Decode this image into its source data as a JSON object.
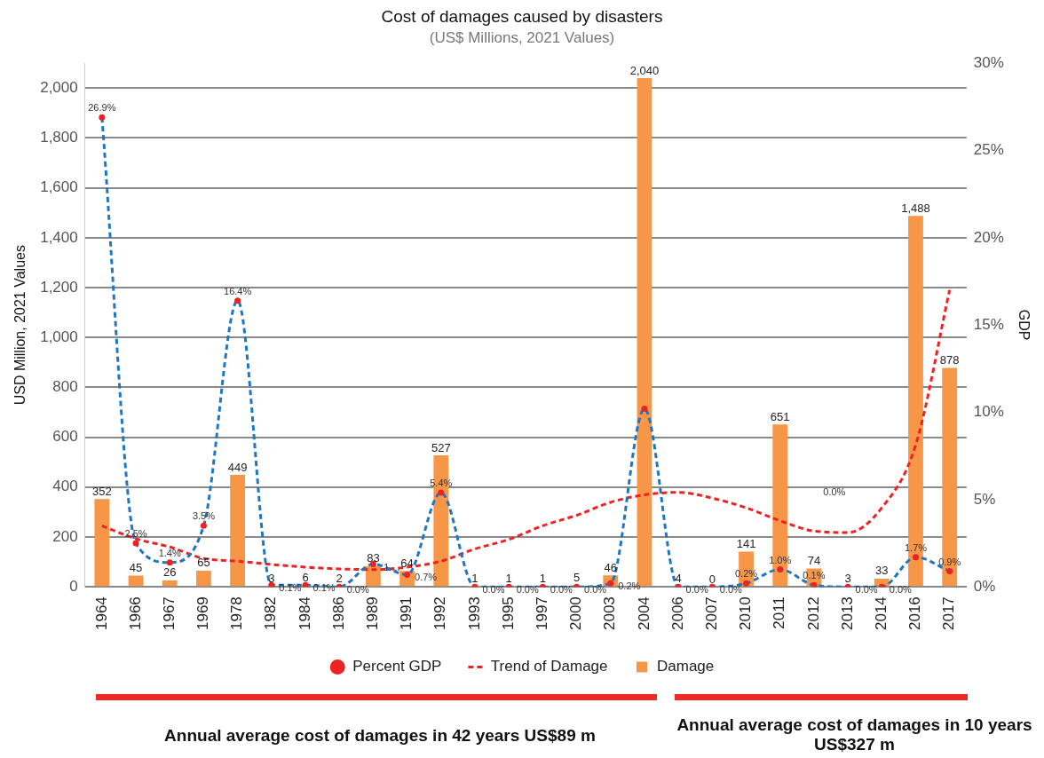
{
  "chart_data": {
    "type": "bar",
    "title": "Cost of damages caused by disasters",
    "subtitle": "(US$ Millions, 2021 Values)",
    "ylabel": "USD Million, 2021 Values",
    "y2label": "GDP",
    "categories": [
      "1964",
      "1966",
      "1967",
      "1969",
      "1978",
      "1982",
      "1984",
      "1986",
      "1989",
      "1991",
      "1992",
      "1993",
      "1995",
      "1997",
      "2000",
      "2003",
      "2004",
      "2006",
      "2007",
      "2010",
      "2011",
      "2012",
      "2013",
      "2014",
      "2016",
      "2017"
    ],
    "series": [
      {
        "name": "Damage",
        "color": "#f79646",
        "values": [
          352,
          45,
          26,
          65,
          449,
          3,
          6,
          2,
          83,
          64,
          527,
          1,
          1,
          1,
          5,
          46,
          2040,
          4,
          0,
          141,
          651,
          74,
          3,
          33,
          1488,
          878
        ],
        "value_labels": [
          "352",
          "45",
          "26",
          "65",
          "449",
          "3",
          "6",
          "2",
          "83",
          "64",
          "527",
          "1",
          "1",
          "1",
          "5",
          "46",
          "2,040",
          "4",
          "0",
          "141",
          "651",
          "74",
          "3",
          "33",
          "1,488",
          "878"
        ]
      },
      {
        "name": "Percent GDP",
        "type": "line",
        "axis": "y2",
        "color": "#1f77c4",
        "colors": [
          "#ee2222",
          "#ee2222",
          "#ee2222",
          "#ee2222",
          "#ee2222",
          "#ee2222",
          "#ee2222",
          "#ee2222",
          "#ee2222",
          "#ee2222",
          "#ee2222",
          "#ee2222",
          "#ee2222",
          "#ee2222",
          "#ee2222",
          "#ee2222",
          "#ee2222",
          "#ee2222",
          "#ee2222",
          "#ee2222",
          "#ee2222",
          "#ee2222",
          "#ee2222",
          "#ee2222",
          "#ee2222",
          "#ee2222"
        ],
        "marker": "circle",
        "line_style": "dashed",
        "values": [
          26.9,
          2.5,
          1.4,
          3.5,
          16.4,
          0.1,
          0.1,
          0.0,
          1.3,
          0.7,
          5.4,
          0.0,
          0.0,
          0.0,
          0.0,
          0.2,
          10.2,
          0.0,
          0.0,
          0.2,
          1.0,
          0.1,
          0.0,
          0.0,
          1.7,
          0.9
        ],
        "value_labels": [
          "26.9%",
          "2.5%",
          "1.4%",
          "3.5%",
          "16.4%",
          "0.1%",
          "0.1%",
          "0.0%",
          "1....",
          "0.7%",
          "5.4%",
          "0.0%",
          "0.0%",
          "0.0%",
          "0.0%",
          "0.2%",
          null,
          "0.0%",
          "0.0%",
          "0.2%",
          "1.0%",
          "0.1%",
          "0.0%",
          "0.0%",
          "1.7%",
          "0.9%"
        ]
      },
      {
        "name": "Trend of Damage",
        "type": "line",
        "color": "#ee2222",
        "marker": "none",
        "line_style": "dashed",
        "values": [
          245,
          193,
          160,
          114,
          103,
          90,
          79,
          72,
          69,
          79,
          103,
          152,
          190,
          245,
          287,
          339,
          369,
          379,
          356,
          317,
          265,
          224,
          218,
          317,
          569,
          1190
        ]
      }
    ],
    "ylim": [
      0,
      2100
    ],
    "yticks": [
      {
        "value": 0,
        "label": "0"
      },
      {
        "value": 200,
        "label": "200"
      },
      {
        "value": 400,
        "label": "400"
      },
      {
        "value": 600,
        "label": "600"
      },
      {
        "value": 800,
        "label": "800"
      },
      {
        "value": 1000,
        "label": "1,000"
      },
      {
        "value": 1200,
        "label": "1,200"
      },
      {
        "value": 1400,
        "label": "1,400"
      },
      {
        "value": 1600,
        "label": "1,600"
      },
      {
        "value": 1800,
        "label": "1,800"
      },
      {
        "value": 2000,
        "label": "2,000"
      }
    ],
    "y2lim": [
      0,
      30
    ],
    "y2ticks": [
      {
        "value": 0,
        "label": "0%"
      },
      {
        "value": 5,
        "label": "5%"
      },
      {
        "value": 10,
        "label": "10%"
      },
      {
        "value": 15,
        "label": "15%"
      },
      {
        "value": 20,
        "label": "20%"
      },
      {
        "value": 25,
        "label": "25%"
      },
      {
        "value": 30,
        "label": "30%"
      }
    ],
    "grid": "y",
    "legend": "bottom",
    "annotations": [
      "0.0%",
      "Annual average cost of damages in 42 years US$89 m",
      "Annual average cost of damages in 10 years US$327 m"
    ]
  }
}
